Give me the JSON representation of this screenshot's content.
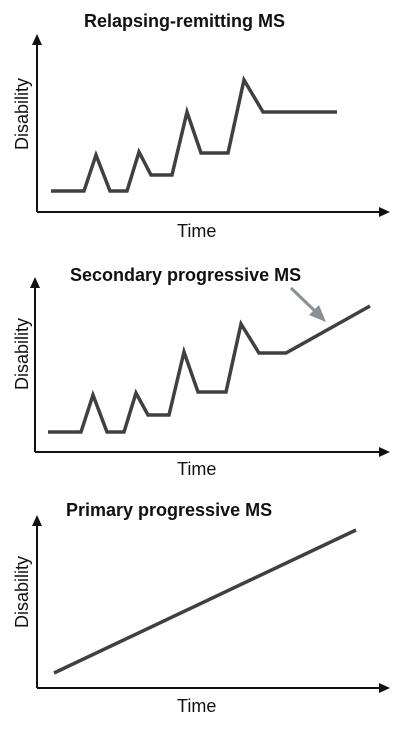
{
  "panels": [
    {
      "title": "Relapsing-remitting MS",
      "xlabel": "Time",
      "ylabel": "Disability"
    },
    {
      "title": "Secondary progressive MS",
      "xlabel": "Time",
      "ylabel": "Disability"
    },
    {
      "title": "Primary progressive MS",
      "xlabel": "Time",
      "ylabel": "Disability"
    }
  ],
  "colors": {
    "axis": "#111111",
    "line": "#404040",
    "arrow": "#8a9196"
  }
}
